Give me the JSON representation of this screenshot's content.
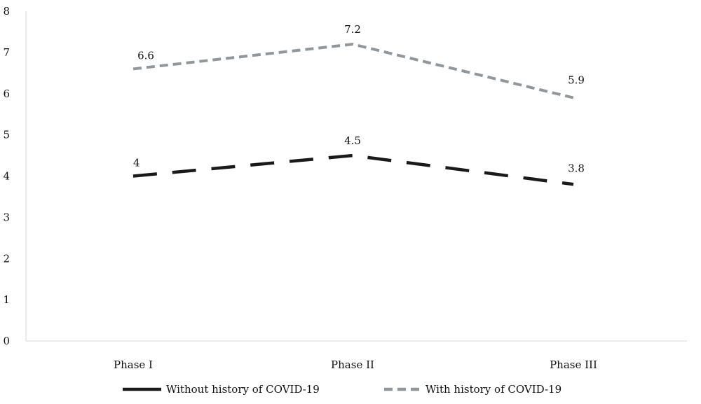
{
  "chart_data": {
    "type": "line",
    "categories": [
      "Phase I",
      "Phase II",
      "Phase III"
    ],
    "ylim": [
      0,
      8
    ],
    "yticks": [
      0,
      1,
      2,
      3,
      4,
      5,
      6,
      7,
      8
    ],
    "grid": false,
    "legend_position": "bottom",
    "series": [
      {
        "name": "Without history of COVID-19",
        "values": [
          4,
          4.5,
          3.8
        ],
        "labels": [
          "4",
          "4.5",
          "3.8"
        ],
        "color": "#1a1a1a",
        "style": "long-dash"
      },
      {
        "name": "With history of COVID-19",
        "values": [
          6.6,
          7.2,
          5.9
        ],
        "labels": [
          "6.6",
          "7.2",
          "5.9"
        ],
        "color": "#8f979d",
        "style": "short-dash"
      }
    ]
  }
}
